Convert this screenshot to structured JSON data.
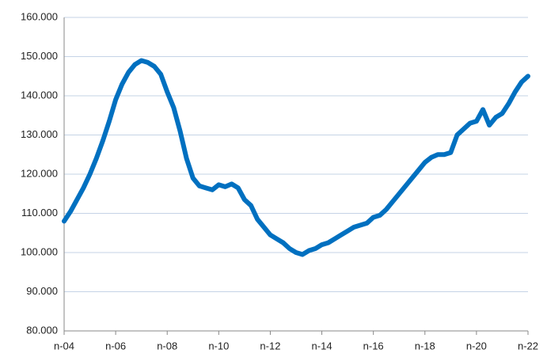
{
  "chart_data": {
    "type": "line",
    "categories": [
      "n-04",
      null,
      null,
      null,
      null,
      null,
      null,
      null,
      "n-06",
      null,
      null,
      null,
      null,
      null,
      null,
      null,
      "n-08",
      null,
      null,
      null,
      null,
      null,
      null,
      null,
      "n-10",
      null,
      null,
      null,
      null,
      null,
      null,
      null,
      "n-12",
      null,
      null,
      null,
      null,
      null,
      null,
      null,
      "n-14",
      null,
      null,
      null,
      null,
      null,
      null,
      null,
      "n-16",
      null,
      null,
      null,
      null,
      null,
      null,
      null,
      "n-18",
      null,
      null,
      null,
      null,
      null,
      null,
      null,
      "n-20",
      null,
      null,
      null,
      null,
      null,
      null,
      null,
      "n-22"
    ],
    "series": [
      {
        "color": "#0070c0",
        "values": [
          108000,
          110500,
          113500,
          116500,
          120000,
          124000,
          128500,
          133500,
          139000,
          143000,
          146000,
          148000,
          149000,
          148500,
          147500,
          145500,
          141000,
          137000,
          131000,
          124000,
          119000,
          117000,
          116500,
          116000,
          117300,
          116800,
          117500,
          116500,
          113500,
          112000,
          108500,
          106500,
          104500,
          103500,
          102500,
          101000,
          100000,
          99500,
          100500,
          101000,
          102000,
          102500,
          103500,
          104500,
          105500,
          106500,
          107000,
          107500,
          109000,
          109500,
          111000,
          113000,
          115000,
          117000,
          119000,
          121000,
          123000,
          124300,
          125000,
          125000,
          125500,
          130000,
          131500,
          133000,
          133500,
          136500,
          132500,
          134500,
          135500,
          138000,
          141000,
          143500,
          145000
        ]
      }
    ],
    "ylim": [
      80000,
      160000
    ],
    "yticks": [
      {
        "value": 80000,
        "label": "80.000"
      },
      {
        "value": 90000,
        "label": "90.000"
      },
      {
        "value": 100000,
        "label": "100.000"
      },
      {
        "value": 110000,
        "label": "110.000"
      },
      {
        "value": 120000,
        "label": "120.000"
      },
      {
        "value": 130000,
        "label": "130.000"
      },
      {
        "value": 140000,
        "label": "140.000"
      },
      {
        "value": 150000,
        "label": "150.000"
      },
      {
        "value": 160000,
        "label": "160.000"
      }
    ],
    "grid": true
  }
}
